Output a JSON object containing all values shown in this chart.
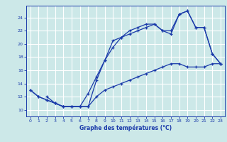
{
  "xlabel": "Graphe des températures (°C)",
  "bg_color": "#cce8e8",
  "grid_color": "#ffffff",
  "line_color": "#1a3aaa",
  "xlim": [
    -0.5,
    23.5
  ],
  "ylim": [
    9.0,
    25.8
  ],
  "xticks": [
    0,
    1,
    2,
    3,
    4,
    5,
    6,
    7,
    8,
    9,
    10,
    11,
    12,
    13,
    14,
    15,
    16,
    17,
    18,
    19,
    20,
    21,
    22,
    23
  ],
  "yticks": [
    10,
    12,
    14,
    16,
    18,
    20,
    22,
    24
  ],
  "line1_x": [
    0,
    1,
    2,
    3,
    4,
    5,
    6,
    7,
    8,
    9,
    10,
    11,
    12,
    13,
    14,
    15,
    16,
    17,
    18,
    19,
    20,
    21,
    22,
    23
  ],
  "line1_y": [
    13.0,
    12.0,
    11.5,
    11.0,
    10.5,
    10.5,
    10.5,
    10.5,
    14.5,
    17.5,
    20.5,
    21.0,
    21.5,
    22.0,
    22.5,
    23.0,
    22.0,
    21.5,
    24.5,
    25.0,
    22.5,
    22.5,
    18.5,
    17.0
  ],
  "line2_x": [
    0,
    1,
    2,
    3,
    4,
    5,
    6,
    7,
    8,
    9,
    10,
    11,
    12,
    13,
    14,
    15,
    16,
    17,
    18,
    19,
    20,
    21,
    22,
    23
  ],
  "line2_y": [
    13.0,
    12.0,
    11.5,
    11.0,
    10.5,
    10.5,
    10.5,
    12.5,
    15.0,
    17.5,
    19.5,
    21.0,
    22.0,
    22.5,
    23.0,
    23.0,
    22.0,
    22.0,
    24.5,
    25.0,
    22.5,
    22.5,
    18.5,
    17.0
  ],
  "line3_x": [
    2,
    3,
    4,
    5,
    6,
    7,
    8,
    9,
    10,
    11,
    12,
    13,
    14,
    15,
    16,
    17,
    18,
    19,
    20,
    21,
    22,
    23
  ],
  "line3_y": [
    12.0,
    11.0,
    10.5,
    10.5,
    10.5,
    10.5,
    12.0,
    13.0,
    13.5,
    14.0,
    14.5,
    15.0,
    15.5,
    16.0,
    16.5,
    17.0,
    17.0,
    16.5,
    16.5,
    16.5,
    17.0,
    17.0
  ]
}
